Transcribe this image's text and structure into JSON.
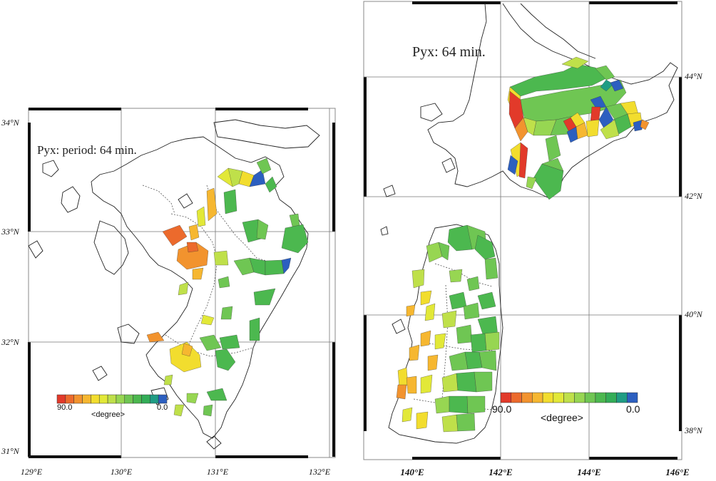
{
  "maps": [
    {
      "id": "kyushu",
      "title": "Pyx:  period: 64 min.",
      "lat_labels": [
        "34°N",
        "33°N",
        "32°N",
        "31°N"
      ],
      "lon_labels": [
        "129°E",
        "130°E",
        "131°E",
        "132°E"
      ],
      "colorbar": {
        "min_label": "90.0",
        "mid_label": "<degree>",
        "max_label": "0.0"
      }
    },
    {
      "id": "tohoku-hokkaido",
      "title": "Pyx:  64 min.",
      "lat_labels": [
        "44°N",
        "42°N",
        "40°N",
        "38°N"
      ],
      "lon_labels": [
        "140°E",
        "142°E",
        "144°E",
        "146°E"
      ],
      "colorbar": {
        "min_label": "90.0",
        "mid_label": "<degree>",
        "max_label": "0.0"
      }
    }
  ],
  "colorbar_colors": [
    "#e23a2a",
    "#ec6a2c",
    "#f2932e",
    "#f6b730",
    "#f2dd2e",
    "#e2e838",
    "#bfe04a",
    "#97d652",
    "#6fc653",
    "#4cb84f",
    "#33ad57",
    "#1f9c84",
    "#2c5fc0"
  ]
}
